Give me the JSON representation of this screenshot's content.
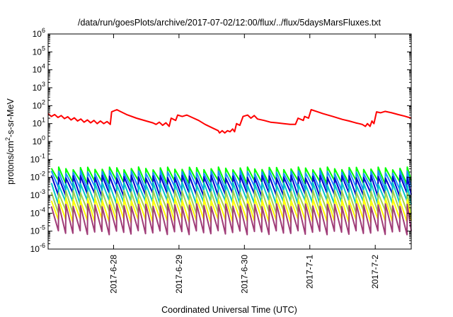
{
  "chart_data": {
    "type": "line",
    "title": "/data/run/goesPlots/archive/2017-07-02/12:00/flux/../flux/5daysMarsFluxes.txt",
    "xlabel": "Coordinated Universal Time (UTC)",
    "ylabel_parts": [
      "protons/cm",
      "2",
      "-s-sr-MeV"
    ],
    "y_scale": "log",
    "ylim": [
      1e-06,
      1000000.0
    ],
    "y_ticks": [
      {
        "base": "10",
        "exp": "-6"
      },
      {
        "base": "10",
        "exp": "-5"
      },
      {
        "base": "10",
        "exp": "-4"
      },
      {
        "base": "10",
        "exp": "-3"
      },
      {
        "base": "10",
        "exp": "-2"
      },
      {
        "base": "10",
        "exp": "-1"
      },
      {
        "base": "10",
        "exp": "0"
      },
      {
        "base": "10",
        "exp": "1"
      },
      {
        "base": "10",
        "exp": "2"
      },
      {
        "base": "10",
        "exp": "3"
      },
      {
        "base": "10",
        "exp": "4"
      },
      {
        "base": "10",
        "exp": "5"
      },
      {
        "base": "10",
        "exp": "6"
      }
    ],
    "x_day_range": [
      0,
      5.55
    ],
    "x_ticks": [
      {
        "label": "2017-6-28",
        "day": 1
      },
      {
        "label": "2017-6-29",
        "day": 2
      },
      {
        "label": "2017-6-30",
        "day": 3
      },
      {
        "label": "2017-7-1",
        "day": 4
      },
      {
        "label": "2017-7-2",
        "day": 5
      }
    ],
    "grid": false,
    "legend": "none",
    "red_series": {
      "color": "#ff0000",
      "points": [
        [
          0.0,
          35
        ],
        [
          0.05,
          25
        ],
        [
          0.1,
          32
        ],
        [
          0.15,
          22
        ],
        [
          0.2,
          28
        ],
        [
          0.25,
          19
        ],
        [
          0.3,
          24
        ],
        [
          0.35,
          16
        ],
        [
          0.4,
          21
        ],
        [
          0.45,
          14
        ],
        [
          0.5,
          18
        ],
        [
          0.55,
          12
        ],
        [
          0.6,
          16
        ],
        [
          0.65,
          11
        ],
        [
          0.7,
          15
        ],
        [
          0.75,
          10
        ],
        [
          0.8,
          14
        ],
        [
          0.85,
          10
        ],
        [
          0.9,
          13
        ],
        [
          0.95,
          9
        ],
        [
          0.97,
          45
        ],
        [
          1.05,
          60
        ],
        [
          1.1,
          48
        ],
        [
          1.2,
          32
        ],
        [
          1.35,
          20
        ],
        [
          1.5,
          14
        ],
        [
          1.6,
          11
        ],
        [
          1.65,
          9
        ],
        [
          1.7,
          12
        ],
        [
          1.75,
          8
        ],
        [
          1.8,
          11
        ],
        [
          1.85,
          7
        ],
        [
          1.88,
          20
        ],
        [
          1.95,
          15
        ],
        [
          1.98,
          30
        ],
        [
          2.05,
          25
        ],
        [
          2.12,
          30
        ],
        [
          2.2,
          22
        ],
        [
          2.3,
          15
        ],
        [
          2.4,
          9
        ],
        [
          2.5,
          6
        ],
        [
          2.6,
          4
        ],
        [
          2.62,
          3
        ],
        [
          2.66,
          4
        ],
        [
          2.7,
          3
        ],
        [
          2.74,
          4
        ],
        [
          2.78,
          3.5
        ],
        [
          2.82,
          5
        ],
        [
          2.85,
          3.5
        ],
        [
          2.88,
          10
        ],
        [
          2.93,
          8
        ],
        [
          2.98,
          25
        ],
        [
          3.05,
          30
        ],
        [
          3.1,
          20
        ],
        [
          3.15,
          28
        ],
        [
          3.2,
          18
        ],
        [
          3.3,
          15
        ],
        [
          3.4,
          12
        ],
        [
          3.5,
          11
        ],
        [
          3.6,
          10
        ],
        [
          3.7,
          9
        ],
        [
          3.78,
          9
        ],
        [
          3.82,
          20
        ],
        [
          3.9,
          15
        ],
        [
          3.92,
          25
        ],
        [
          3.98,
          20
        ],
        [
          4.02,
          60
        ],
        [
          4.1,
          48
        ],
        [
          4.2,
          36
        ],
        [
          4.35,
          25
        ],
        [
          4.5,
          17
        ],
        [
          4.6,
          14
        ],
        [
          4.7,
          11
        ],
        [
          4.75,
          10
        ],
        [
          4.8,
          9
        ],
        [
          4.85,
          7
        ],
        [
          4.88,
          10
        ],
        [
          4.92,
          7
        ],
        [
          4.95,
          14
        ],
        [
          4.98,
          10
        ],
        [
          5.02,
          45
        ],
        [
          5.08,
          40
        ],
        [
          5.15,
          48
        ],
        [
          5.25,
          40
        ],
        [
          5.35,
          32
        ],
        [
          5.45,
          26
        ],
        [
          5.55,
          20
        ]
      ]
    },
    "saw_series": [
      {
        "color": "#00ff00",
        "peak": 0.032,
        "base": 0.0055
      },
      {
        "color": "#1e90ff",
        "peak": 0.02,
        "base": 0.0025
      },
      {
        "color": "#0000cd",
        "peak": 0.011,
        "base": 0.0011
      },
      {
        "color": "#00c8c8",
        "peak": 0.0045,
        "base": 0.0004
      },
      {
        "color": "#a0d050",
        "peak": 0.0016,
        "base": 0.00012
      },
      {
        "color": "#ffff00",
        "peak": 0.0006,
        "base": 4e-05
      },
      {
        "color": "#a03c78",
        "peak": 0.00028,
        "base": 8.5e-06
      }
    ],
    "saw_x_start": 0.05,
    "saw_period": 0.111
  }
}
